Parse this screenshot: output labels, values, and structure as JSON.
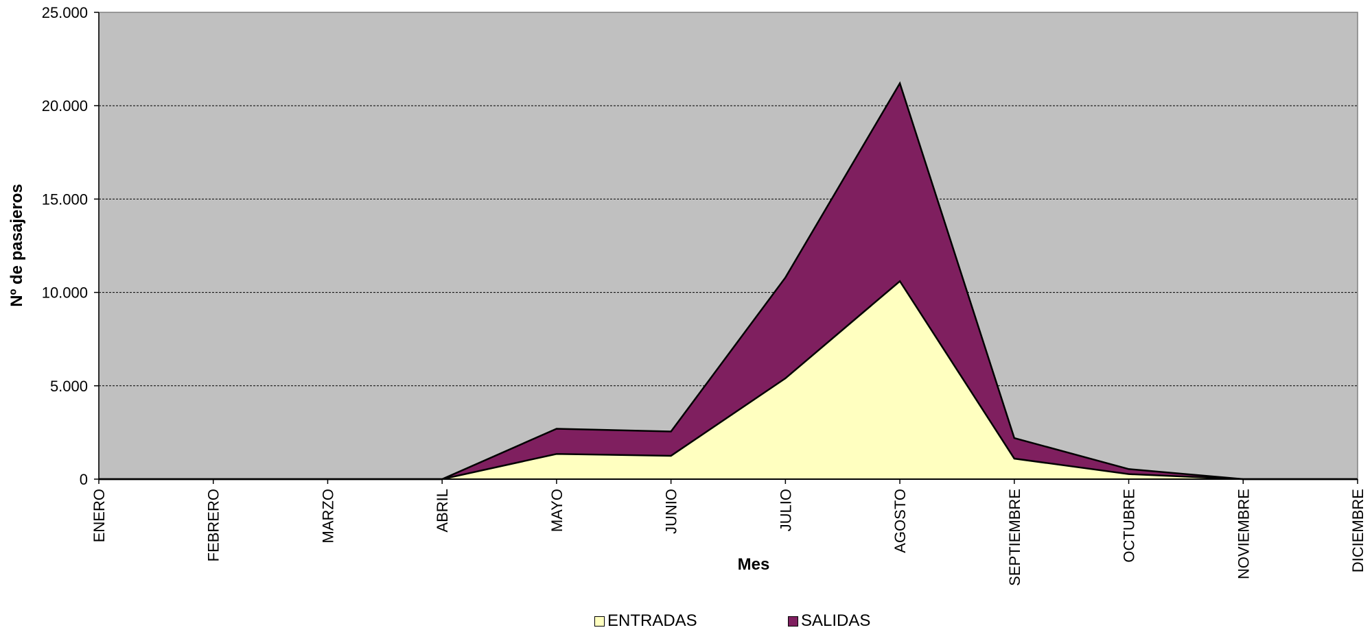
{
  "chart_data": {
    "type": "area",
    "stacked": true,
    "categories": [
      "ENERO",
      "FEBRERO",
      "MARZO",
      "ABRIL",
      "MAYO",
      "JUNIO",
      "JULIO",
      "AGOSTO",
      "SEPTIEMBRE",
      "OCTUBRE",
      "NOVIEMBRE",
      "DICIEMBRE"
    ],
    "series": [
      {
        "name": "ENTRADAS",
        "color": "#FFFFC0",
        "values": [
          0,
          0,
          0,
          0,
          1350,
          1250,
          5400,
          10600,
          1100,
          270,
          0,
          0
        ]
      },
      {
        "name": "SALIDAS",
        "color": "#7F1F5F",
        "values": [
          0,
          0,
          0,
          0,
          1350,
          1300,
          5400,
          10600,
          1100,
          270,
          0,
          0
        ]
      }
    ],
    "xlabel": "Mes",
    "ylabel": "Nº de pasajeros",
    "ylim": [
      0,
      25000
    ],
    "yticks": [
      "0",
      "5.000",
      "10.000",
      "15.000",
      "20.000",
      "25.000"
    ],
    "ytick_values": [
      0,
      5000,
      10000,
      15000,
      20000,
      25000
    ],
    "plot_background": "#C0C0C0",
    "grid": true,
    "legend_position": "bottom"
  }
}
